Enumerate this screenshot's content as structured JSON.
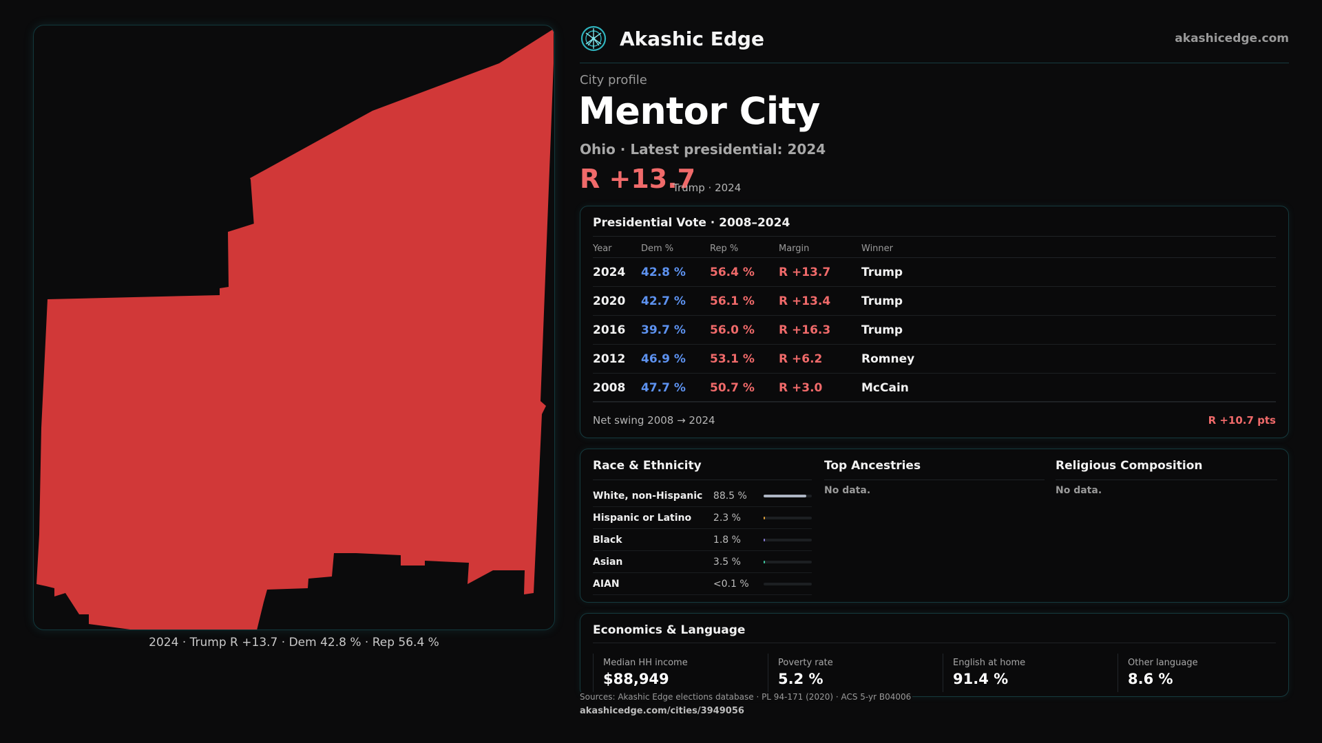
{
  "brand": {
    "name": "Akashic Edge",
    "url": "akashicedge.com",
    "logo_icon": "network-globe-icon"
  },
  "profile": {
    "eyebrow": "City profile",
    "title": "Mentor City",
    "subtitle": "Ohio · Latest presidential: 2024",
    "margin": "R +13.7",
    "margin_note": "Trump · 2024"
  },
  "map": {
    "caption": "2024 · Trump R +13.7 · Dem 42.8 % · Rep 56.4 %",
    "fill_color": "#d13838"
  },
  "vote": {
    "title": "Presidential Vote · 2008–2024",
    "headers": {
      "year": "Year",
      "dem": "Dem %",
      "rep": "Rep %",
      "margin": "Margin",
      "winner": "Winner"
    },
    "rows": [
      {
        "year": "2024",
        "dem": "42.8 %",
        "rep": "56.4 %",
        "margin": "R +13.7",
        "winner": "Trump"
      },
      {
        "year": "2020",
        "dem": "42.7 %",
        "rep": "56.1 %",
        "margin": "R +13.4",
        "winner": "Trump"
      },
      {
        "year": "2016",
        "dem": "39.7 %",
        "rep": "56.0 %",
        "margin": "R +16.3",
        "winner": "Trump"
      },
      {
        "year": "2012",
        "dem": "46.9 %",
        "rep": "53.1 %",
        "margin": "R +6.2",
        "winner": "Romney"
      },
      {
        "year": "2008",
        "dem": "47.7 %",
        "rep": "50.7 %",
        "margin": "R +3.0",
        "winner": "McCain"
      }
    ],
    "swing_label": "Net swing 2008 → 2024",
    "swing_value": "R +10.7 pts"
  },
  "race": {
    "title": "Race & Ethnicity",
    "rows": [
      {
        "name": "White, non-Hispanic",
        "pct": "88.5 %",
        "share": 0.885,
        "color": "#aeb6c4"
      },
      {
        "name": "Hispanic or Latino",
        "pct": "2.3 %",
        "share": 0.023,
        "color": "#e0a03a"
      },
      {
        "name": "Black",
        "pct": "1.8 %",
        "share": 0.018,
        "color": "#8a7bd8"
      },
      {
        "name": "Asian",
        "pct": "3.5 %",
        "share": 0.035,
        "color": "#3ec9a0"
      },
      {
        "name": "AIAN",
        "pct": "<0.1 %",
        "share": 0.0,
        "color": "#c9a06a"
      }
    ]
  },
  "ancestries": {
    "title": "Top Ancestries",
    "empty": "No data."
  },
  "religion": {
    "title": "Religious Composition",
    "empty": "No data."
  },
  "economics": {
    "title": "Economics & Language",
    "stats": [
      {
        "label": "Median HH income",
        "value": "$88,949"
      },
      {
        "label": "Poverty rate",
        "value": "5.2 %"
      },
      {
        "label": "English at home",
        "value": "91.4 %"
      },
      {
        "label": "Other language",
        "value": "8.6 %"
      }
    ]
  },
  "footer": {
    "sources": "Sources: Akashic Edge elections database · PL 94-171 (2020) · ACS 5-yr B04006",
    "permalink": "akashicedge.com/cities/3949056"
  },
  "colors": {
    "dem": "#5d92f0",
    "rep": "#f06a6a",
    "accent": "#2fb3bd"
  }
}
